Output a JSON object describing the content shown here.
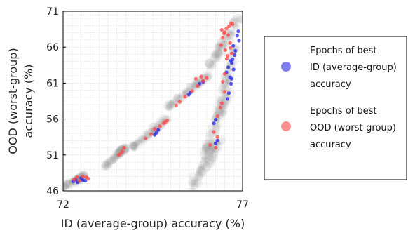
{
  "chart_data": {
    "type": "scatter",
    "xlabel": "ID (average-group) accuracy (%)",
    "ylabel_lines": [
      "OOD (worst-group)",
      "accuracy (%)"
    ],
    "xlim": [
      72,
      77
    ],
    "ylim": [
      46,
      71
    ],
    "xticks": [
      72,
      77
    ],
    "yticks": [
      46,
      51,
      56,
      61,
      66,
      71
    ],
    "grid": true,
    "legend_placement": "right",
    "legend": [
      {
        "lines": [
          "Epochs of best",
          "ID (average-group)",
          "accuracy"
        ],
        "color": "#2a2ae8"
      },
      {
        "lines": [
          "Epochs of best",
          "OOD (worst-group)",
          "accuracy"
        ],
        "color": "#ff4a4a"
      }
    ],
    "background_color": "#9a9a9a",
    "series": [
      {
        "color": "#2a2ae8",
        "points": [
          [
            72.28,
            47.3
          ],
          [
            72.35,
            47.6
          ],
          [
            72.4,
            47.2
          ],
          [
            72.5,
            47.8
          ],
          [
            72.55,
            47.5
          ],
          [
            72.62,
            47.4
          ],
          [
            74.55,
            53.8
          ],
          [
            74.6,
            54.1
          ],
          [
            74.65,
            54.5
          ],
          [
            75.5,
            59.4
          ],
          [
            75.55,
            59.7
          ],
          [
            75.8,
            60.9
          ],
          [
            75.9,
            61.2
          ],
          [
            76.2,
            55.4
          ],
          [
            76.25,
            55.9
          ],
          [
            76.3,
            53.0
          ],
          [
            76.25,
            52.6
          ],
          [
            76.55,
            62.5
          ],
          [
            76.6,
            63.2
          ],
          [
            76.65,
            61.8
          ],
          [
            76.7,
            63.8
          ],
          [
            76.72,
            64.3
          ],
          [
            76.75,
            62.9
          ],
          [
            76.78,
            64.9
          ],
          [
            76.8,
            65.5
          ],
          [
            76.68,
            60.9
          ],
          [
            76.7,
            61.6
          ],
          [
            76.66,
            64.1
          ],
          [
            76.74,
            66.2
          ],
          [
            76.62,
            59.6
          ],
          [
            76.58,
            58.8
          ],
          [
            76.85,
            67.6
          ],
          [
            76.88,
            68.2
          ],
          [
            76.9,
            66.9
          ]
        ]
      },
      {
        "color": "#ff4a4a",
        "points": [
          [
            72.3,
            47.6
          ],
          [
            72.38,
            47.9
          ],
          [
            72.45,
            47.4
          ],
          [
            72.55,
            48.0
          ],
          [
            72.65,
            47.9
          ],
          [
            72.7,
            47.7
          ],
          [
            73.55,
            51.0
          ],
          [
            73.6,
            51.2
          ],
          [
            73.65,
            51.5
          ],
          [
            73.7,
            52.0
          ],
          [
            74.3,
            53.3
          ],
          [
            74.45,
            53.9
          ],
          [
            74.55,
            54.6
          ],
          [
            74.7,
            55.0
          ],
          [
            74.8,
            55.4
          ],
          [
            74.85,
            55.6
          ],
          [
            74.9,
            55.8
          ],
          [
            75.15,
            57.9
          ],
          [
            75.25,
            58.4
          ],
          [
            75.4,
            59.1
          ],
          [
            75.6,
            59.9
          ],
          [
            75.75,
            60.6
          ],
          [
            75.9,
            61.3
          ],
          [
            76.0,
            61.7
          ],
          [
            75.85,
            61.9
          ],
          [
            75.7,
            61.6
          ],
          [
            76.1,
            52.4
          ],
          [
            76.2,
            54.2
          ],
          [
            76.3,
            56.4
          ],
          [
            76.38,
            57.6
          ],
          [
            76.42,
            58.2
          ],
          [
            76.5,
            59.8
          ],
          [
            76.25,
            52.0
          ],
          [
            76.3,
            53.5
          ],
          [
            76.4,
            66.3
          ],
          [
            76.45,
            67.3
          ],
          [
            76.5,
            68.1
          ],
          [
            76.55,
            68.6
          ],
          [
            76.6,
            67.7
          ],
          [
            76.65,
            66.6
          ],
          [
            76.7,
            65.1
          ],
          [
            76.58,
            64.8
          ],
          [
            76.52,
            65.6
          ],
          [
            76.48,
            67.9
          ],
          [
            76.42,
            68.4
          ],
          [
            76.62,
            68.9
          ],
          [
            76.68,
            69.3
          ],
          [
            76.72,
            69.2
          ],
          [
            76.66,
            65.9
          ],
          [
            76.56,
            64.4
          ],
          [
            76.5,
            62.3
          ],
          [
            76.45,
            61.2
          ]
        ]
      }
    ]
  }
}
